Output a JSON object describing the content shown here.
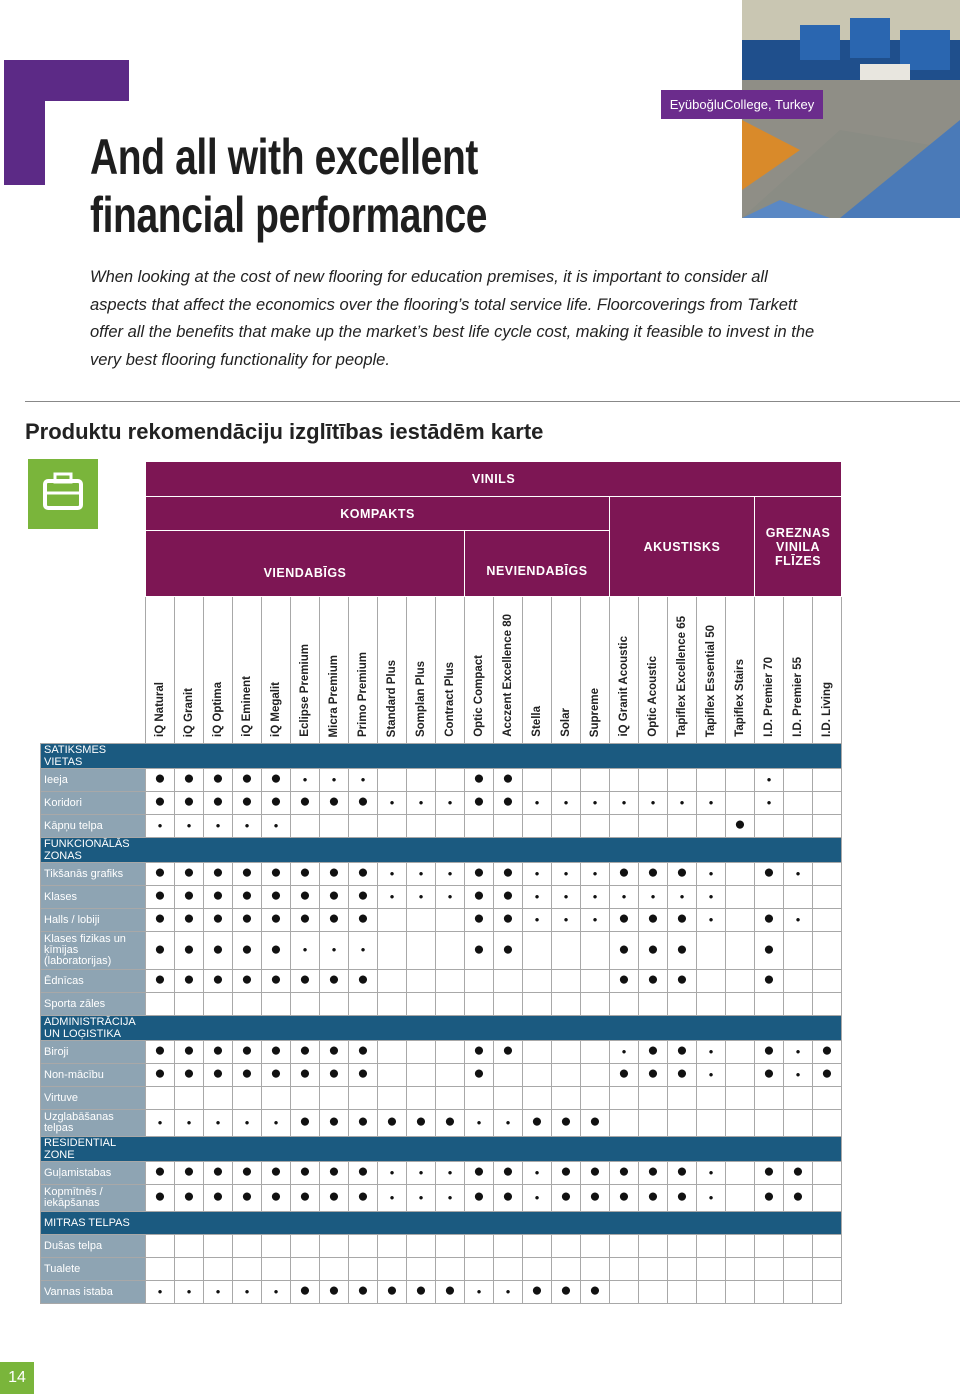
{
  "caption": "EyüboğluCollege, Turkey",
  "title": "And all with excellent financial performance",
  "intro": "When looking at the cost of new flooring for education premises, it is important to consider all aspects that affect the economics over the flooring’s total service life. Floorcoverings from Tarkett offer all the benefits that make up the market’s best life cycle cost, making it feasible to invest in the very best flooring functionality for people.",
  "heading": "Produktu rekomendāciju izglītības iestādēm karte",
  "table": {
    "group": "VINILS",
    "compact": "KOMPAKTS",
    "homogeneous": "VIENDABĪGS",
    "heterogeneous": "NEVIENDABĪGS",
    "acoustic": "AKUSTISKS",
    "luxury": "GREZNAS VINILA FLĪZES",
    "columns": [
      "iQ Natural",
      "iQ Granit",
      "iQ Optima",
      "iQ Eminent",
      "iQ Megalit",
      "Eclipse Premium",
      "Micra Premium",
      "Primo Premium",
      "Standard Plus",
      "Somplan Plus",
      "Contract Plus",
      "Optic Compact",
      "Acczent Excellence 80",
      "Stella",
      "Solar",
      "Supreme",
      "iQ Granit Acoustic",
      "Optic Acoustic",
      "Tapiflex Excellence 65",
      "Tapiflex Essential 50",
      "Tapiflex Stairs",
      "I.D. Premier 70",
      "I.D. Premier 55",
      "I.D. Living"
    ],
    "sections": [
      {
        "title": "SATIKSMES VIETAS",
        "rows": [
          {
            "label": "Ieeja",
            "cells": [
              "●",
              "●",
              "●",
              "●",
              "●",
              "•",
              "•",
              "•",
              null,
              null,
              null,
              "●",
              "●",
              null,
              null,
              null,
              null,
              null,
              null,
              null,
              null,
              "•",
              null,
              null
            ]
          },
          {
            "label": "Koridori",
            "cells": [
              "●",
              "●",
              "●",
              "●",
              "●",
              "●",
              "●",
              "●",
              "•",
              "•",
              "•",
              "●",
              "●",
              "•",
              "•",
              "•",
              "•",
              "•",
              "•",
              "•",
              null,
              "•",
              null,
              null
            ]
          },
          {
            "label": "Kāpņu telpa",
            "cells": [
              "•",
              "•",
              "•",
              "•",
              "•",
              null,
              null,
              null,
              null,
              null,
              null,
              null,
              null,
              null,
              null,
              null,
              null,
              null,
              null,
              null,
              "●",
              null,
              null,
              null
            ]
          }
        ]
      },
      {
        "title": "FUNKCIONĀLĀS ZONAS",
        "rows": [
          {
            "label": "Tikšanās grafiks",
            "cells": [
              "●",
              "●",
              "●",
              "●",
              "●",
              "●",
              "●",
              "●",
              "•",
              "•",
              "•",
              "●",
              "●",
              "•",
              "•",
              "•",
              "●",
              "●",
              "●",
              "•",
              null,
              "●",
              "•",
              null
            ]
          },
          {
            "label": "Klases",
            "cells": [
              "●",
              "●",
              "●",
              "●",
              "●",
              "●",
              "●",
              "●",
              "•",
              "•",
              "•",
              "●",
              "●",
              "•",
              "•",
              "•",
              "•",
              "•",
              "•",
              "•",
              null,
              null,
              null,
              null
            ]
          },
          {
            "label": "Halls / lobiji",
            "cells": [
              "●",
              "●",
              "●",
              "●",
              "●",
              "●",
              "●",
              "●",
              null,
              null,
              null,
              "●",
              "●",
              "•",
              "•",
              "•",
              "●",
              "●",
              "●",
              "•",
              null,
              "●",
              "•",
              null
            ]
          },
          {
            "label": "Klases fizikas un ķīmijas (laboratorijas)",
            "cells": [
              "●",
              "●",
              "●",
              "●",
              "●",
              "•",
              "•",
              "•",
              null,
              null,
              null,
              "●",
              "●",
              null,
              null,
              null,
              "●",
              "●",
              "●",
              null,
              null,
              "●",
              null,
              null
            ]
          },
          {
            "label": "Ēdnīcas",
            "cells": [
              "●",
              "●",
              "●",
              "●",
              "●",
              "●",
              "●",
              "●",
              null,
              null,
              null,
              null,
              null,
              null,
              null,
              null,
              "●",
              "●",
              "●",
              null,
              null,
              "●",
              null,
              null
            ]
          },
          {
            "label": "Sporta zāles"
          }
        ]
      },
      {
        "title": "ADMINISTRĀCIJA UN LOĢISTIKA",
        "rows": [
          {
            "label": "Biroji",
            "cells": [
              "●",
              "●",
              "●",
              "●",
              "●",
              "●",
              "●",
              "●",
              null,
              null,
              null,
              "●",
              "●",
              null,
              null,
              null,
              "•",
              "●",
              "●",
              "•",
              null,
              "●",
              "•",
              "●"
            ]
          },
          {
            "label": "Non-mācību",
            "cells": [
              "●",
              "●",
              "●",
              "●",
              "●",
              "●",
              "●",
              "●",
              null,
              null,
              null,
              "●",
              null,
              null,
              null,
              null,
              "●",
              "●",
              "●",
              "•",
              null,
              "●",
              "•",
              "●"
            ]
          },
          {
            "label": "Virtuve"
          },
          {
            "label": "Uzglabāšanas telpas",
            "cells": [
              "•",
              "•",
              "•",
              "•",
              "•",
              "●",
              "●",
              "●",
              "●",
              "●",
              "●",
              "•",
              "•",
              "●",
              "●",
              "●",
              null,
              null,
              null,
              null,
              null,
              null,
              null,
              null
            ]
          }
        ]
      },
      {
        "title": "RESIDENTIAL ZONE",
        "rows": [
          {
            "label": "Guļamistabas",
            "cells": [
              "●",
              "●",
              "●",
              "●",
              "●",
              "●",
              "●",
              "●",
              "•",
              "•",
              "•",
              "●",
              "●",
              "•",
              "●",
              "●",
              "●",
              "●",
              "●",
              "•",
              null,
              "●",
              "●",
              null
            ]
          },
          {
            "label": "Kopmītnēs / iekāpšanas",
            "cells": [
              "●",
              "●",
              "●",
              "●",
              "●",
              "●",
              "●",
              "●",
              "•",
              "•",
              "•",
              "●",
              "●",
              "•",
              "●",
              "●",
              "●",
              "●",
              "●",
              "•",
              null,
              "●",
              "●",
              null
            ]
          }
        ]
      },
      {
        "title": "MITRAS TELPAS",
        "rows": [
          {
            "label": "Dušas telpa"
          },
          {
            "label": "Tualete"
          },
          {
            "label": "Vannas istaba",
            "cells": [
              "•",
              "•",
              "•",
              "•",
              "•",
              "●",
              "●",
              "●",
              "●",
              "●",
              "●",
              "•",
              "•",
              "●",
              "●",
              "●",
              null,
              null,
              null,
              null,
              null,
              null,
              null,
              null
            ]
          }
        ]
      }
    ]
  },
  "page_number": "14"
}
